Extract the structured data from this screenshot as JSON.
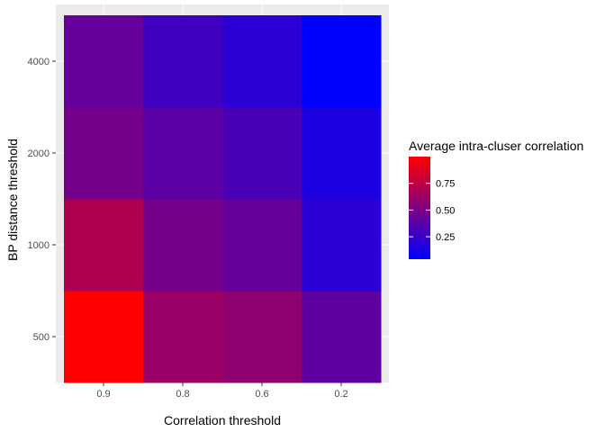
{
  "chart_data": {
    "type": "heatmap",
    "xlabel": "Correlation threshold",
    "ylabel": "BP distance threshold",
    "x_categories": [
      "0.9",
      "0.8",
      "0.6",
      "0.2"
    ],
    "y_categories": [
      "500",
      "1000",
      "2000",
      "4000"
    ],
    "values": [
      [
        1.0,
        0.62,
        0.58,
        0.4
      ],
      [
        0.7,
        0.48,
        0.42,
        0.2
      ],
      [
        0.48,
        0.38,
        0.32,
        0.15
      ],
      [
        0.42,
        0.28,
        0.2,
        0.04
      ]
    ],
    "value_range": [
      0.04,
      1.0
    ],
    "color_low": "#0000FF",
    "color_high": "#FF0000",
    "legend": {
      "title": "Average intra-cluser correlation",
      "ticks": [
        "0.25",
        "0.50",
        "0.75"
      ],
      "tick_values": [
        0.25,
        0.5,
        0.75
      ],
      "position": "right"
    },
    "panel_background": "#EBEBEB",
    "grid": true
  }
}
